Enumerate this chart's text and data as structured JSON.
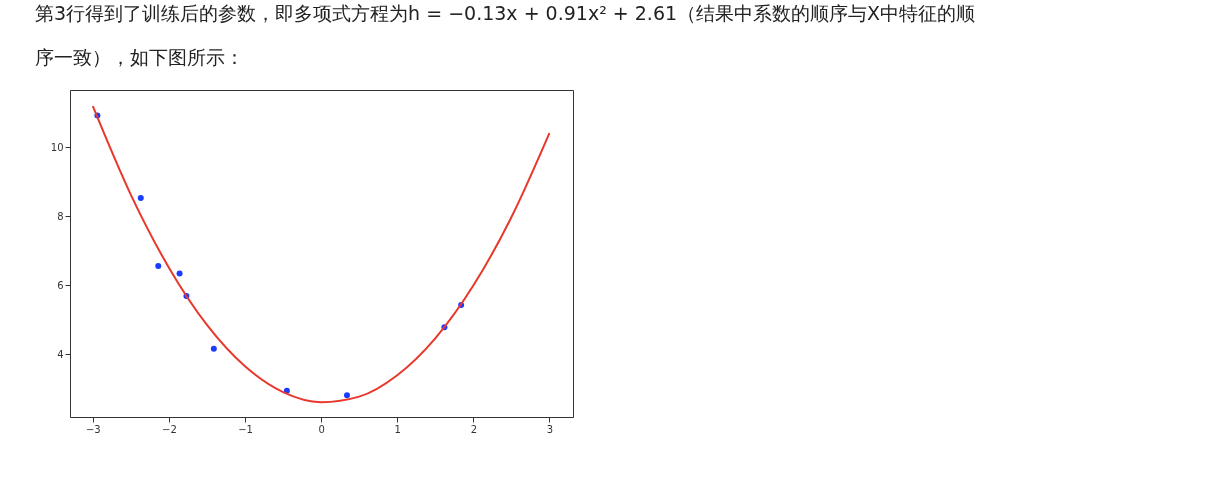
{
  "chart_data": {
    "type": "scatter",
    "title": [
      "第3行得到了训练后的参数，即多项式方程为h = −0.13x + 0.91x² + 2.61（结果中系数的顺序与X中特征的顺",
      "序一致），如下图所示："
    ],
    "xlim": [
      -3.3,
      3.31
    ],
    "ylim": [
      2.18,
      11.66
    ],
    "xticks": [
      -3,
      -2,
      -1,
      0,
      1,
      2,
      3
    ],
    "yticks": [
      4,
      6,
      8,
      10
    ],
    "grid": false,
    "series": [
      {
        "type": "scatter",
        "color": "#1a3cff",
        "marker": "circle",
        "x": [
          -2.94,
          -2.37,
          -2.14,
          -1.86,
          -1.77,
          -1.41,
          -0.45,
          0.34,
          1.62,
          1.84
        ],
        "values": [
          10.92,
          8.53,
          6.56,
          6.34,
          5.69,
          4.16,
          2.94,
          2.81,
          4.78,
          5.43
        ]
      },
      {
        "type": "line",
        "color": "#e8382b",
        "line_style": "solid",
        "x": [
          -3,
          -2.5,
          -2,
          -1.5,
          -1,
          -0.5,
          0,
          0.5,
          1,
          1.5,
          2,
          2.5,
          3
        ],
        "values": [
          11.19,
          8.62,
          6.51,
          4.85,
          3.65,
          2.9,
          2.61,
          2.77,
          3.39,
          4.46,
          5.99,
          7.97,
          10.41
        ]
      }
    ]
  }
}
